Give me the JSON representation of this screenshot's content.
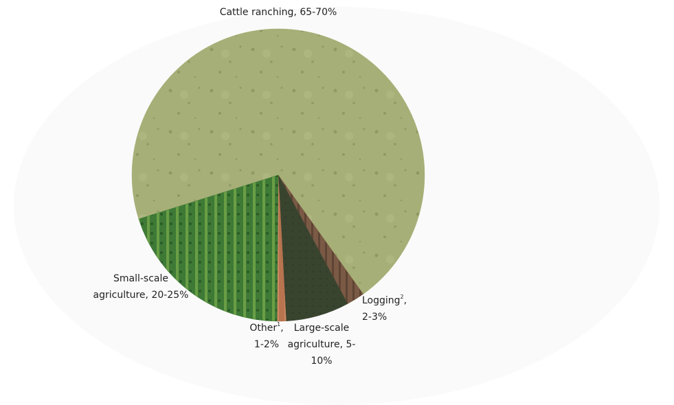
{
  "chart_data": {
    "type": "pie",
    "categories": [
      "Cattle ranching",
      "Logging",
      "Large-scale agriculture",
      "Other",
      "Small-scale agriculture"
    ],
    "footnotes": [
      null,
      "2",
      null,
      "1",
      null
    ],
    "separator": ",",
    "values": [
      70,
      2,
      7,
      1,
      20
    ],
    "value_labels": [
      "65-70%",
      "2-3%",
      "5-10%",
      "1-2%",
      "20-25%"
    ],
    "colors": [
      "#a6af77",
      "#7a5a45",
      "#39442f",
      "#b8734f",
      "#3e7a36"
    ]
  }
}
